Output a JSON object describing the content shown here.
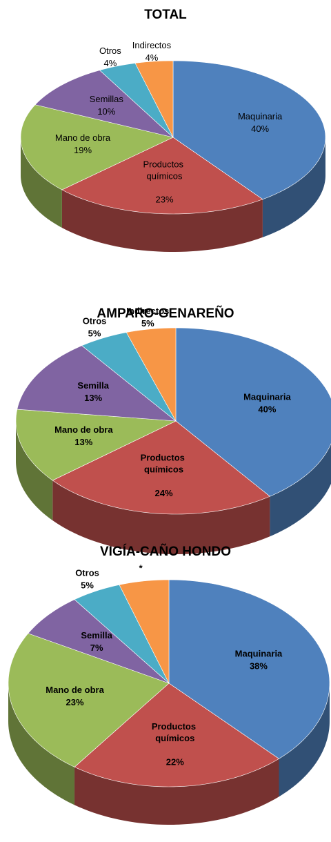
{
  "chart_data": [
    {
      "type": "pie",
      "title": "TOTAL",
      "categories": [
        "Maquinaria",
        "Productos químicos",
        "Mano de obra",
        "Semillas",
        "Otros",
        "Indirectos"
      ],
      "values": [
        40,
        23,
        19,
        10,
        4,
        4
      ],
      "value_labels": [
        "40%",
        "23%",
        "19%",
        "10%",
        "4%",
        "4%"
      ],
      "colors": [
        "#4f81bd",
        "#c0504d",
        "#9bbb59",
        "#8064a2",
        "#4bacc6",
        "#f79646"
      ]
    },
    {
      "type": "pie",
      "title": "AMPARO-GENAREÑO",
      "categories": [
        "Maquinaria",
        "Productos químicos",
        "Mano de obra",
        "Semilla",
        "Otros",
        "Indirectos"
      ],
      "values": [
        40,
        24,
        13,
        13,
        5,
        5
      ],
      "value_labels": [
        "40%",
        "24%",
        "13%",
        "13%",
        "5%",
        "5%"
      ],
      "colors": [
        "#4f81bd",
        "#c0504d",
        "#9bbb59",
        "#8064a2",
        "#4bacc6",
        "#f79646"
      ]
    },
    {
      "type": "pie",
      "title": "VIGÍA-CAÑO HONDO",
      "categories": [
        "Maquinaria",
        "Productos químicos",
        "Mano de obra",
        "Semilla",
        "Otros",
        null
      ],
      "values": [
        38,
        22,
        23,
        7,
        5,
        5
      ],
      "value_labels": [
        "38%",
        "22%",
        "23%",
        "7%",
        "5%",
        "*"
      ],
      "colors": [
        "#4f81bd",
        "#c0504d",
        "#9bbb59",
        "#8064a2",
        "#4bacc6",
        "#f79646"
      ]
    }
  ]
}
